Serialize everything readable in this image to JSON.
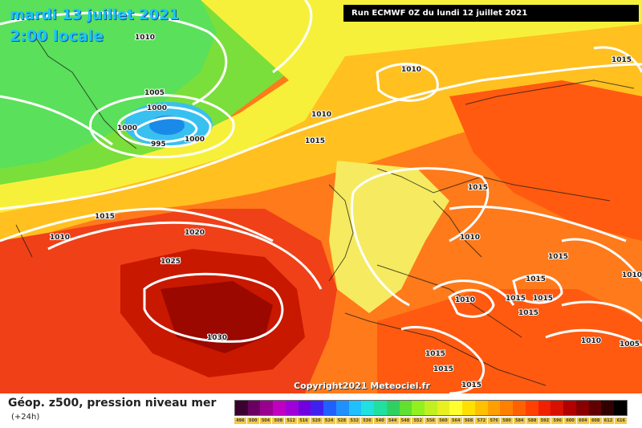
{
  "header": {
    "date": "mardi 13 juillet 2021",
    "time": "2:00 locale",
    "run": "Run ECMWF 0Z du lundi 12 juillet 2021"
  },
  "copyright": "Copyright2021 Meteociel.fr",
  "footer": {
    "title": "Géop. z500, pression niveau mer",
    "subtitle": "(+24h)"
  },
  "isobar_labels": [
    "1010",
    "1005",
    "1000",
    "1000",
    "1000",
    "995",
    "1010",
    "1015",
    "1010",
    "1015",
    "1015",
    "1010",
    "1020",
    "1025",
    "1030",
    "1015",
    "1010",
    "1015",
    "1015",
    "1010",
    "1015",
    "1015",
    "1015",
    "1010",
    "1010",
    "1005",
    "1015",
    "1015",
    "1015"
  ],
  "legend": {
    "values": [
      "496",
      "500",
      "504",
      "508",
      "512",
      "516",
      "520",
      "524",
      "528",
      "532",
      "536",
      "540",
      "544",
      "548",
      "552",
      "556",
      "560",
      "564",
      "568",
      "572",
      "576",
      "580",
      "584",
      "588",
      "592",
      "596",
      "600",
      "604",
      "608",
      "612",
      "616"
    ],
    "colors": [
      "#3a0030",
      "#6a0060",
      "#9a0090",
      "#c000c0",
      "#a000d8",
      "#7000e0",
      "#4020f0",
      "#2060ff",
      "#2090ff",
      "#20c0ff",
      "#20e0e0",
      "#20e0a0",
      "#30d060",
      "#60e030",
      "#90f020",
      "#c0f020",
      "#e8f020",
      "#ffff30",
      "#ffe000",
      "#ffc000",
      "#ffa000",
      "#ff8000",
      "#ff6000",
      "#ff4000",
      "#f02000",
      "#d81000",
      "#b00000",
      "#880000",
      "#600000",
      "#300000",
      "#000000"
    ]
  }
}
